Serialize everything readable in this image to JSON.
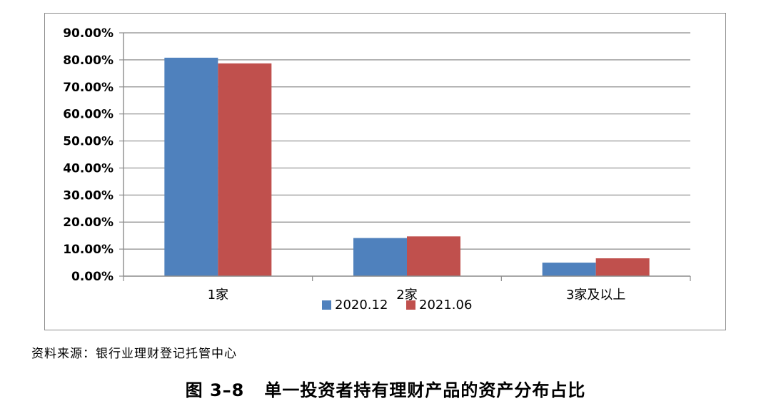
{
  "chart_data": {
    "type": "bar",
    "categories": [
      "1家",
      "2家",
      "3家及以上"
    ],
    "series": [
      {
        "name": "2020.12",
        "values": [
          80.8,
          14.1,
          5.0
        ],
        "color": "#4f81bd"
      },
      {
        "name": "2021.06",
        "values": [
          78.7,
          14.7,
          6.6
        ],
        "color": "#c0504d"
      }
    ],
    "ylim": [
      0,
      90
    ],
    "yticks": [
      0,
      10,
      20,
      30,
      40,
      50,
      60,
      70,
      80,
      90
    ],
    "ytick_labels": [
      "0.00%",
      "10.00%",
      "20.00%",
      "30.00%",
      "40.00%",
      "50.00%",
      "60.00%",
      "70.00%",
      "80.00%",
      "90.00%"
    ],
    "grid": true,
    "legend_position": "bottom"
  },
  "source_note": "资料来源：银行业理财登记托管中心",
  "caption": {
    "number": "图 3–8",
    "title": "单一投资者持有理财产品的资产分布占比"
  }
}
